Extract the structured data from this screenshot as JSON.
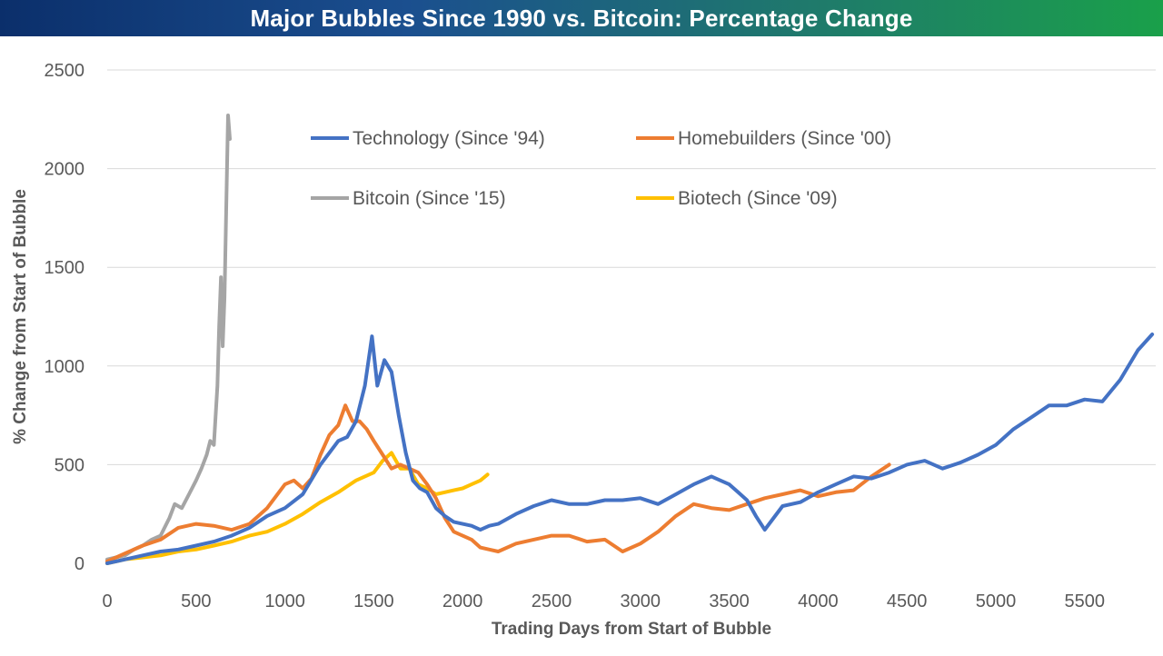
{
  "chart_data": {
    "type": "line",
    "title": "Major Bubbles Since 1990 vs. Bitcoin: Percentage Change",
    "xlabel": "Trading Days from Start of Bubble",
    "ylabel": "% Change from Start of Bubble",
    "xlim": [
      0,
      5900
    ],
    "ylim": [
      0,
      2500
    ],
    "xticks": [
      0,
      500,
      1000,
      1500,
      2000,
      2500,
      3000,
      3500,
      4000,
      4500,
      5000,
      5500
    ],
    "yticks": [
      0,
      500,
      1000,
      1500,
      2000,
      2500
    ],
    "grid": "horizontal",
    "legend_placement": "top-center",
    "series": [
      {
        "name": "Technology (Since '94)",
        "color": "#4472c4",
        "points": [
          [
            0,
            0
          ],
          [
            100,
            20
          ],
          [
            200,
            40
          ],
          [
            300,
            60
          ],
          [
            400,
            70
          ],
          [
            500,
            90
          ],
          [
            600,
            110
          ],
          [
            700,
            140
          ],
          [
            800,
            180
          ],
          [
            900,
            240
          ],
          [
            1000,
            280
          ],
          [
            1100,
            350
          ],
          [
            1200,
            500
          ],
          [
            1300,
            620
          ],
          [
            1350,
            640
          ],
          [
            1400,
            720
          ],
          [
            1450,
            900
          ],
          [
            1490,
            1150
          ],
          [
            1520,
            900
          ],
          [
            1560,
            1030
          ],
          [
            1600,
            970
          ],
          [
            1640,
            750
          ],
          [
            1680,
            560
          ],
          [
            1720,
            420
          ],
          [
            1760,
            380
          ],
          [
            1800,
            360
          ],
          [
            1850,
            280
          ],
          [
            1900,
            240
          ],
          [
            1950,
            210
          ],
          [
            2000,
            200
          ],
          [
            2050,
            190
          ],
          [
            2100,
            170
          ],
          [
            2150,
            190
          ],
          [
            2200,
            200
          ],
          [
            2300,
            250
          ],
          [
            2400,
            290
          ],
          [
            2500,
            320
          ],
          [
            2600,
            300
          ],
          [
            2700,
            300
          ],
          [
            2800,
            320
          ],
          [
            2900,
            320
          ],
          [
            3000,
            330
          ],
          [
            3100,
            300
          ],
          [
            3200,
            350
          ],
          [
            3300,
            400
          ],
          [
            3400,
            440
          ],
          [
            3500,
            400
          ],
          [
            3550,
            360
          ],
          [
            3600,
            320
          ],
          [
            3650,
            240
          ],
          [
            3700,
            170
          ],
          [
            3750,
            230
          ],
          [
            3800,
            290
          ],
          [
            3900,
            310
          ],
          [
            4000,
            360
          ],
          [
            4100,
            400
          ],
          [
            4200,
            440
          ],
          [
            4300,
            430
          ],
          [
            4400,
            460
          ],
          [
            4500,
            500
          ],
          [
            4600,
            520
          ],
          [
            4700,
            480
          ],
          [
            4800,
            510
          ],
          [
            4900,
            550
          ],
          [
            5000,
            600
          ],
          [
            5100,
            680
          ],
          [
            5200,
            740
          ],
          [
            5300,
            800
          ],
          [
            5400,
            800
          ],
          [
            5500,
            830
          ],
          [
            5600,
            820
          ],
          [
            5700,
            930
          ],
          [
            5800,
            1080
          ],
          [
            5880,
            1160
          ]
        ]
      },
      {
        "name": "Homebuilders (Since '00)",
        "color": "#ed7d31",
        "points": [
          [
            0,
            10
          ],
          [
            100,
            50
          ],
          [
            200,
            90
          ],
          [
            300,
            120
          ],
          [
            400,
            180
          ],
          [
            500,
            200
          ],
          [
            600,
            190
          ],
          [
            700,
            170
          ],
          [
            800,
            200
          ],
          [
            900,
            280
          ],
          [
            1000,
            400
          ],
          [
            1050,
            420
          ],
          [
            1100,
            380
          ],
          [
            1150,
            430
          ],
          [
            1200,
            550
          ],
          [
            1250,
            650
          ],
          [
            1300,
            700
          ],
          [
            1340,
            800
          ],
          [
            1380,
            720
          ],
          [
            1420,
            720
          ],
          [
            1460,
            680
          ],
          [
            1500,
            620
          ],
          [
            1550,
            550
          ],
          [
            1600,
            480
          ],
          [
            1650,
            500
          ],
          [
            1700,
            480
          ],
          [
            1750,
            460
          ],
          [
            1800,
            400
          ],
          [
            1850,
            330
          ],
          [
            1900,
            230
          ],
          [
            1950,
            160
          ],
          [
            2000,
            140
          ],
          [
            2050,
            120
          ],
          [
            2100,
            80
          ],
          [
            2150,
            70
          ],
          [
            2200,
            60
          ],
          [
            2300,
            100
          ],
          [
            2400,
            120
          ],
          [
            2500,
            140
          ],
          [
            2600,
            140
          ],
          [
            2700,
            110
          ],
          [
            2800,
            120
          ],
          [
            2900,
            60
          ],
          [
            3000,
            100
          ],
          [
            3100,
            160
          ],
          [
            3200,
            240
          ],
          [
            3300,
            300
          ],
          [
            3400,
            280
          ],
          [
            3500,
            270
          ],
          [
            3600,
            300
          ],
          [
            3700,
            330
          ],
          [
            3800,
            350
          ],
          [
            3900,
            370
          ],
          [
            4000,
            340
          ],
          [
            4100,
            360
          ],
          [
            4200,
            370
          ],
          [
            4300,
            440
          ],
          [
            4400,
            500
          ]
        ]
      },
      {
        "name": "Bitcoin (Since '15)",
        "color": "#a5a5a5",
        "points": [
          [
            0,
            20
          ],
          [
            50,
            30
          ],
          [
            100,
            40
          ],
          [
            150,
            70
          ],
          [
            200,
            90
          ],
          [
            250,
            120
          ],
          [
            300,
            140
          ],
          [
            350,
            230
          ],
          [
            380,
            300
          ],
          [
            420,
            280
          ],
          [
            460,
            350
          ],
          [
            500,
            420
          ],
          [
            530,
            480
          ],
          [
            560,
            550
          ],
          [
            580,
            620
          ],
          [
            600,
            600
          ],
          [
            620,
            900
          ],
          [
            630,
            1200
          ],
          [
            640,
            1450
          ],
          [
            650,
            1100
          ],
          [
            660,
            1350
          ],
          [
            670,
            1800
          ],
          [
            680,
            2270
          ],
          [
            690,
            2150
          ]
        ]
      },
      {
        "name": "Biotech (Since '09)",
        "color": "#ffc000",
        "points": [
          [
            0,
            0
          ],
          [
            100,
            20
          ],
          [
            200,
            30
          ],
          [
            300,
            40
          ],
          [
            400,
            60
          ],
          [
            500,
            70
          ],
          [
            600,
            90
          ],
          [
            700,
            110
          ],
          [
            800,
            140
          ],
          [
            900,
            160
          ],
          [
            1000,
            200
          ],
          [
            1100,
            250
          ],
          [
            1200,
            310
          ],
          [
            1300,
            360
          ],
          [
            1400,
            420
          ],
          [
            1500,
            460
          ],
          [
            1550,
            520
          ],
          [
            1600,
            560
          ],
          [
            1650,
            480
          ],
          [
            1700,
            480
          ],
          [
            1750,
            400
          ],
          [
            1800,
            380
          ],
          [
            1850,
            350
          ],
          [
            1900,
            360
          ],
          [
            1950,
            370
          ],
          [
            2000,
            380
          ],
          [
            2050,
            400
          ],
          [
            2100,
            420
          ],
          [
            2140,
            450
          ]
        ]
      }
    ]
  }
}
